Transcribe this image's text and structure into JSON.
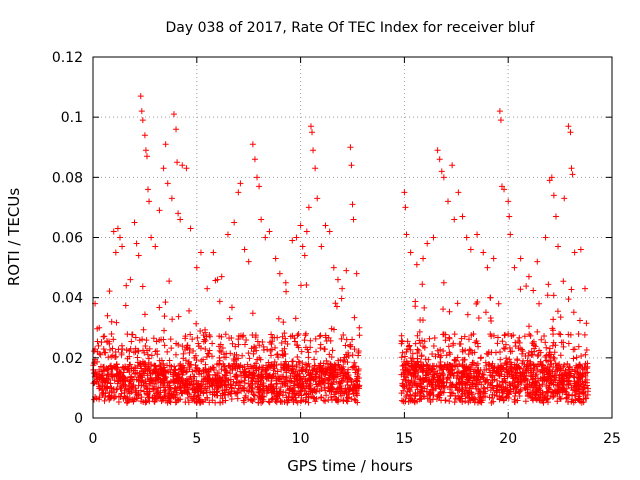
{
  "chart_data": {
    "type": "scatter",
    "title": "Day 038 of 2017, Rate Of TEC Index for receiver bluf",
    "xlabel": "GPS time / hours",
    "ylabel": "ROTI / TECUs",
    "xlim": [
      0,
      25
    ],
    "ylim": [
      0,
      0.12
    ],
    "x_ticks": [
      0,
      5,
      10,
      15,
      20,
      25
    ],
    "y_ticks": [
      0,
      0.02,
      0.04,
      0.06,
      0.08,
      0.1,
      0.12
    ],
    "x_tick_labels": [
      "0",
      "5",
      "10",
      "15",
      "20",
      "25"
    ],
    "y_tick_labels": [
      "0",
      "0.02",
      "0.04",
      "0.06",
      "0.08",
      "0.1",
      "0.12"
    ],
    "grid": true,
    "marker": "+",
    "colors": {
      "points": "#ff0000",
      "grid": "#a0a0a0",
      "axes": "#000000"
    },
    "data_gap_hours": [
      12.85,
      14.85
    ],
    "series": [
      {
        "points": [
          [
            0.1,
            0.038
          ],
          [
            0.3,
            0.03
          ],
          [
            0.5,
            0.027
          ],
          [
            0.7,
            0.034
          ],
          [
            0.9,
            0.032
          ],
          [
            1.0,
            0.062
          ],
          [
            1.1,
            0.055
          ],
          [
            1.2,
            0.063
          ],
          [
            1.3,
            0.06
          ],
          [
            1.4,
            0.057
          ],
          [
            1.6,
            0.044
          ],
          [
            1.8,
            0.046
          ],
          [
            2.0,
            0.065
          ],
          [
            2.1,
            0.058
          ],
          [
            2.2,
            0.054
          ],
          [
            2.3,
            0.107
          ],
          [
            2.35,
            0.102
          ],
          [
            2.4,
            0.099
          ],
          [
            2.5,
            0.094
          ],
          [
            2.55,
            0.089
          ],
          [
            2.6,
            0.087
          ],
          [
            2.65,
            0.076
          ],
          [
            2.7,
            0.072
          ],
          [
            2.8,
            0.06
          ],
          [
            3.0,
            0.057
          ],
          [
            3.2,
            0.069
          ],
          [
            3.4,
            0.083
          ],
          [
            3.5,
            0.091
          ],
          [
            3.6,
            0.078
          ],
          [
            3.8,
            0.073
          ],
          [
            3.9,
            0.101
          ],
          [
            4.0,
            0.096
          ],
          [
            4.05,
            0.085
          ],
          [
            4.1,
            0.068
          ],
          [
            4.2,
            0.066
          ],
          [
            4.3,
            0.084
          ],
          [
            4.5,
            0.083
          ],
          [
            4.7,
            0.063
          ],
          [
            5.0,
            0.05
          ],
          [
            5.2,
            0.055
          ],
          [
            5.5,
            0.043
          ],
          [
            5.8,
            0.055
          ],
          [
            6.0,
            0.046
          ],
          [
            6.2,
            0.047
          ],
          [
            6.5,
            0.061
          ],
          [
            6.8,
            0.065
          ],
          [
            7.0,
            0.075
          ],
          [
            7.1,
            0.078
          ],
          [
            7.3,
            0.056
          ],
          [
            7.5,
            0.052
          ],
          [
            7.7,
            0.091
          ],
          [
            7.8,
            0.086
          ],
          [
            7.9,
            0.08
          ],
          [
            8.0,
            0.077
          ],
          [
            8.1,
            0.066
          ],
          [
            8.3,
            0.06
          ],
          [
            8.5,
            0.062
          ],
          [
            8.8,
            0.053
          ],
          [
            9.0,
            0.048
          ],
          [
            9.3,
            0.042
          ],
          [
            9.6,
            0.059
          ],
          [
            9.8,
            0.06
          ],
          [
            10.0,
            0.064
          ],
          [
            10.1,
            0.057
          ],
          [
            10.2,
            0.054
          ],
          [
            10.3,
            0.062
          ],
          [
            10.4,
            0.07
          ],
          [
            10.5,
            0.097
          ],
          [
            10.55,
            0.095
          ],
          [
            10.6,
            0.089
          ],
          [
            10.7,
            0.083
          ],
          [
            10.8,
            0.073
          ],
          [
            11.0,
            0.057
          ],
          [
            11.2,
            0.064
          ],
          [
            11.4,
            0.062
          ],
          [
            11.6,
            0.05
          ],
          [
            11.8,
            0.046
          ],
          [
            12.0,
            0.043
          ],
          [
            12.2,
            0.049
          ],
          [
            12.4,
            0.09
          ],
          [
            12.45,
            0.084
          ],
          [
            12.5,
            0.071
          ],
          [
            12.55,
            0.066
          ],
          [
            12.7,
            0.048
          ],
          [
            15.0,
            0.075
          ],
          [
            15.05,
            0.07
          ],
          [
            15.1,
            0.061
          ],
          [
            15.3,
            0.055
          ],
          [
            15.6,
            0.051
          ],
          [
            15.9,
            0.053
          ],
          [
            16.1,
            0.058
          ],
          [
            16.4,
            0.06
          ],
          [
            16.6,
            0.089
          ],
          [
            16.7,
            0.086
          ],
          [
            16.8,
            0.082
          ],
          [
            16.9,
            0.08
          ],
          [
            17.1,
            0.072
          ],
          [
            17.3,
            0.084
          ],
          [
            17.4,
            0.066
          ],
          [
            17.6,
            0.075
          ],
          [
            17.8,
            0.067
          ],
          [
            18.0,
            0.06
          ],
          [
            18.2,
            0.056
          ],
          [
            18.5,
            0.061
          ],
          [
            18.8,
            0.055
          ],
          [
            19.0,
            0.05
          ],
          [
            19.3,
            0.053
          ],
          [
            19.6,
            0.102
          ],
          [
            19.65,
            0.099
          ],
          [
            19.7,
            0.077
          ],
          [
            19.8,
            0.076
          ],
          [
            20.0,
            0.072
          ],
          [
            20.05,
            0.067
          ],
          [
            20.1,
            0.061
          ],
          [
            20.3,
            0.05
          ],
          [
            20.6,
            0.053
          ],
          [
            21.0,
            0.047
          ],
          [
            21.4,
            0.052
          ],
          [
            21.8,
            0.06
          ],
          [
            22.0,
            0.079
          ],
          [
            22.1,
            0.08
          ],
          [
            22.2,
            0.074
          ],
          [
            22.3,
            0.067
          ],
          [
            22.4,
            0.057
          ],
          [
            22.7,
            0.073
          ],
          [
            22.9,
            0.097
          ],
          [
            23.0,
            0.095
          ],
          [
            23.05,
            0.083
          ],
          [
            23.1,
            0.081
          ],
          [
            23.2,
            0.055
          ],
          [
            23.5,
            0.056
          ],
          [
            23.7,
            0.043
          ]
        ]
      }
    ]
  }
}
